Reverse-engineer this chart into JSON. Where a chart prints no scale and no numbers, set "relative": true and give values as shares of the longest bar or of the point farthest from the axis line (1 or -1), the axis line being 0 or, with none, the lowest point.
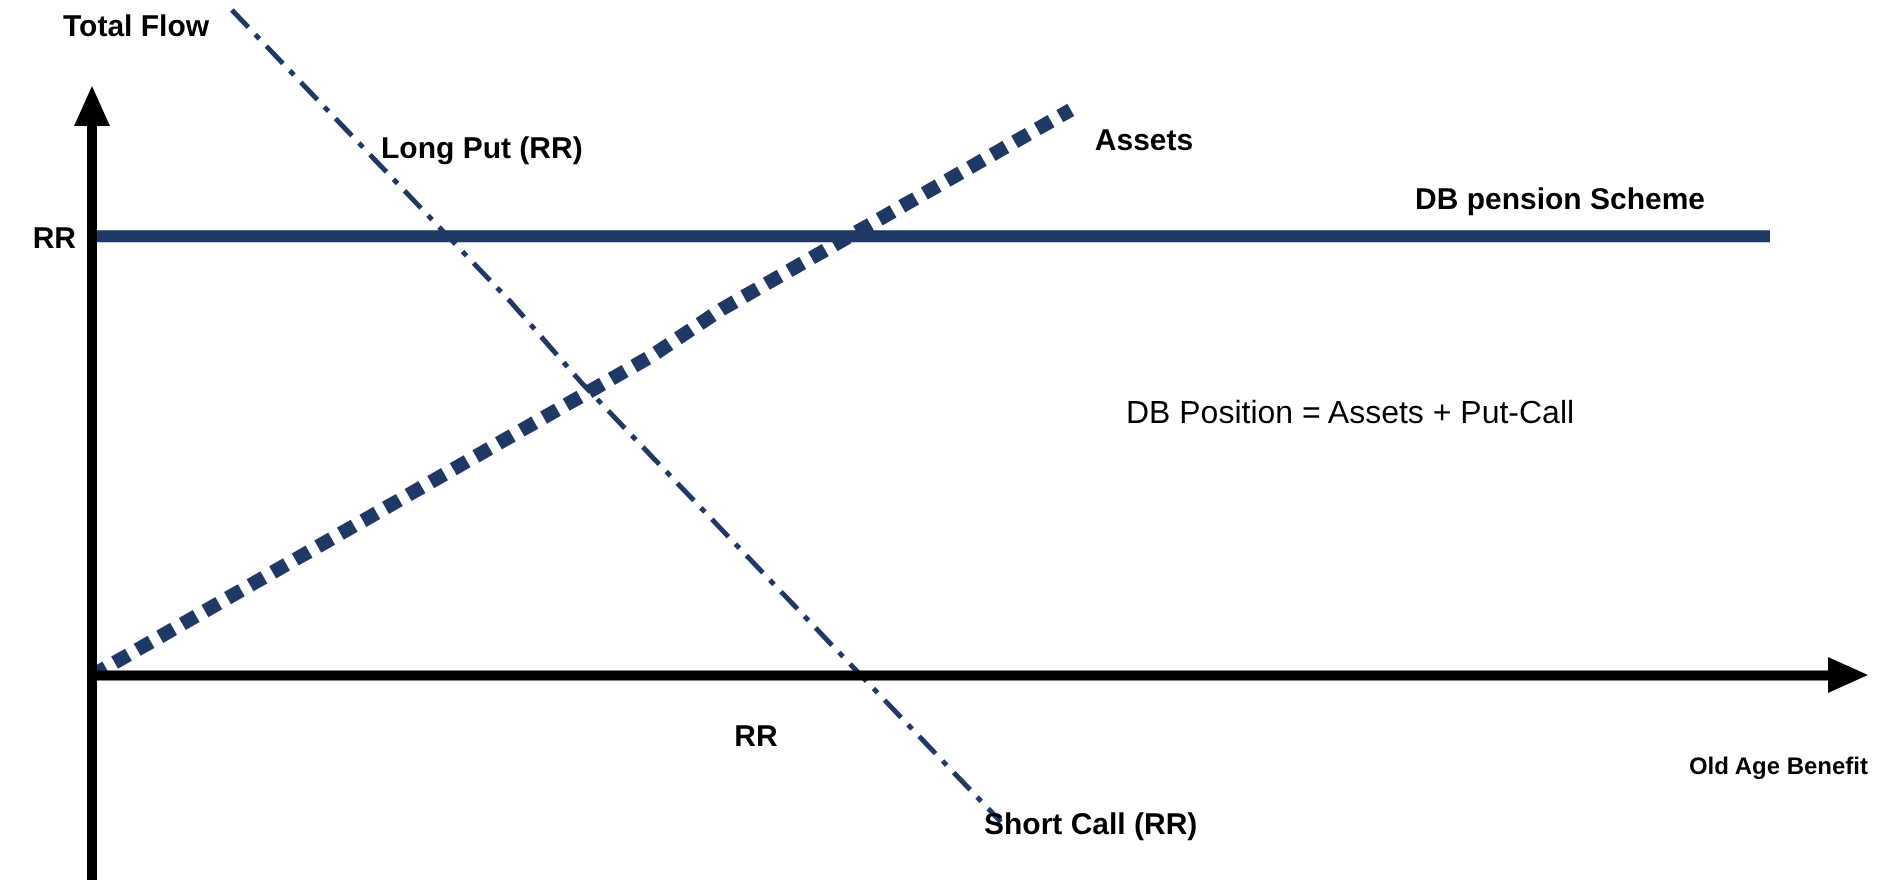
{
  "chart_data": {
    "type": "line",
    "relative": true,
    "ylabel": "Total Flow",
    "xlabel": "Old Age Benefit",
    "legend": false,
    "marker": "none",
    "categories": [
      null,
      null,
      null,
      null,
      null,
      null,
      null,
      null,
      null,
      null,
      null,
      null,
      null,
      null,
      null,
      null,
      null,
      null,
      null,
      null,
      null,
      null,
      null,
      null,
      null
    ],
    "series": [
      {
        "name": "DB pension Scheme",
        "color": "#1f3864",
        "line_style": "solid",
        "values": [
          0.66,
          0.66,
          0.66,
          0.66,
          0.66,
          0.66,
          0.66,
          0.66,
          0.66,
          0.66,
          0.66,
          0.66,
          0.66,
          0.66,
          0.66,
          0.66,
          0.66,
          0.66,
          0.66,
          0.66,
          0.66,
          0.66,
          0.66,
          0.66,
          0.66
        ]
      },
      {
        "name": "Assets",
        "color": "#1f3864",
        "line_style": "dotted",
        "values": [
          0,
          0.06,
          0.12,
          0.18,
          0.24,
          0.3,
          0.36,
          0.42,
          0.48,
          0.55,
          0.61,
          0.67,
          0.73,
          0.79,
          0.85,
          null,
          null,
          null,
          null,
          null,
          null,
          null,
          null,
          null,
          null
        ]
      },
      {
        "name": "Long Put (RR)",
        "color": "#1f3864",
        "line_style": "dashed",
        "values": [
          null,
          null,
          1,
          0.89,
          0.78,
          0.67,
          0.56,
          0.44,
          0.33,
          0.22,
          0.11,
          0,
          -0.11,
          -0.22,
          null,
          null,
          null,
          null,
          null,
          null,
          null,
          null,
          null,
          null,
          null
        ]
      }
    ],
    "annotations": [
      "DB Position = Assets + Put-Call",
      "Short Call (RR)",
      "RR",
      "RR"
    ]
  }
}
